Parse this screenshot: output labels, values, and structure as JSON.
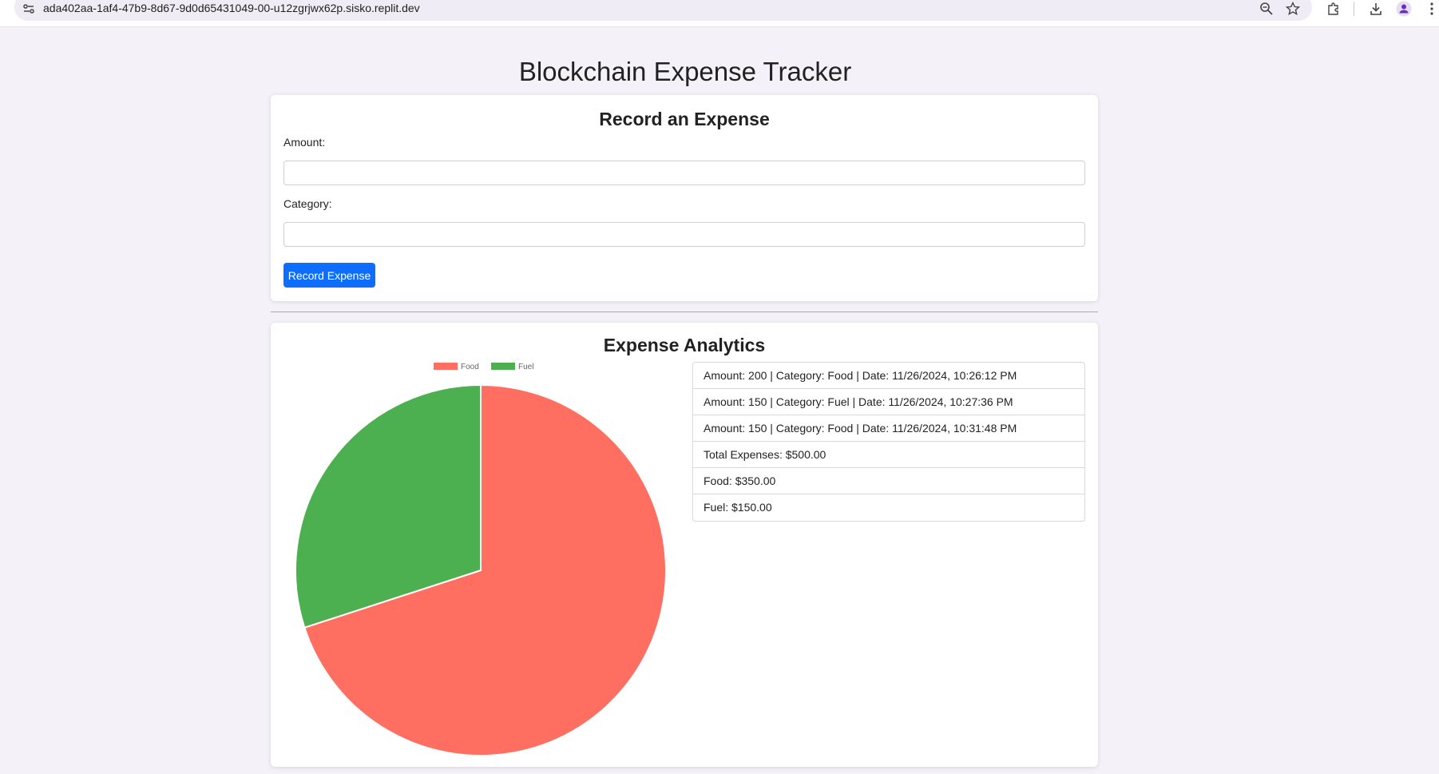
{
  "browser": {
    "url": "ada402aa-1af4-47b9-8d67-9d0d65431049-00-u12zgrjwx62p.sisko.replit.dev",
    "icons": [
      "site-settings-icon",
      "zoom-icon",
      "bookmark-star-icon",
      "extensions-icon",
      "download-icon",
      "profile-icon",
      "menu-icon"
    ]
  },
  "page": {
    "title": "Blockchain Expense Tracker"
  },
  "form": {
    "title": "Record an Expense",
    "amount_label": "Amount:",
    "amount_value": "",
    "category_label": "Category:",
    "category_value": "",
    "submit_label": "Record Expense",
    "accent_color": "#0d6efd"
  },
  "analytics": {
    "title": "Expense Analytics",
    "entries": [
      "Amount: 200 | Category: Food | Date: 11/26/2024, 10:26:12 PM",
      "Amount: 150 | Category: Fuel | Date: 11/26/2024, 10:27:36 PM",
      "Amount: 150 | Category: Food | Date: 11/26/2024, 10:31:48 PM",
      "Total Expenses: $500.00",
      "Food: $350.00",
      "Fuel: $150.00"
    ]
  },
  "chart_data": {
    "type": "pie",
    "categories": [
      "Food",
      "Fuel"
    ],
    "values": [
      350,
      150
    ],
    "colors": [
      "#ff6f61",
      "#4caf50"
    ],
    "legend": "top",
    "title": ""
  }
}
